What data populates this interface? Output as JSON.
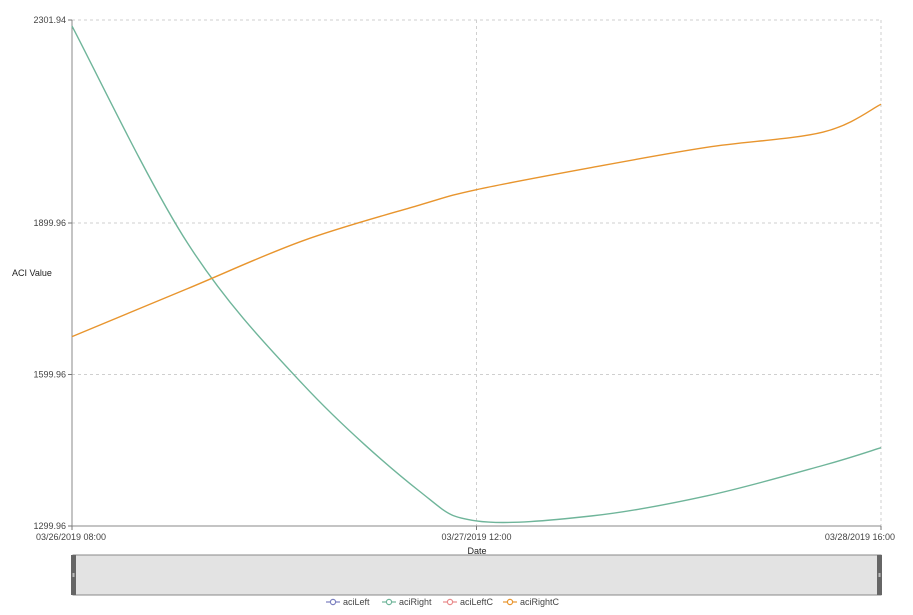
{
  "chart_data": {
    "type": "line",
    "xlabel": "Date",
    "ylabel": "ACI Value",
    "ylim": [
      1299.96,
      2301.94
    ],
    "y_ticks": [
      "2301.94",
      "1899.96",
      "1599.96",
      "1299.96"
    ],
    "x_ticks": [
      "03/26/2019 08:00",
      "03/27/2019 12:00",
      "03/28/2019 16:00"
    ],
    "grid": true,
    "legend_position": "bottom",
    "series": [
      {
        "name": "aciLeft",
        "color": "#7b7fbf",
        "x": [],
        "y": []
      },
      {
        "name": "aciRight",
        "color": "#6fb59a",
        "x": [
          "03/26/2019 08:00",
          "03/26/2019 16:00",
          "03/27/2019 00:00",
          "03/27/2019 08:00",
          "03/27/2019 12:00",
          "03/27/2019 20:00",
          "03/28/2019 04:00",
          "03/28/2019 12:00",
          "03/28/2019 16:00"
        ],
        "y": [
          2290,
          1860,
          1580,
          1370,
          1310,
          1320,
          1360,
          1420,
          1455
        ]
      },
      {
        "name": "aciLeftC",
        "color": "#e88a8a",
        "x": [],
        "y": []
      },
      {
        "name": "aciRightC",
        "color": "#e8952e",
        "x": [
          "03/26/2019 08:00",
          "03/26/2019 16:00",
          "03/27/2019 00:00",
          "03/27/2019 08:00",
          "03/27/2019 12:00",
          "03/27/2019 20:00",
          "03/28/2019 04:00",
          "03/28/2019 12:00",
          "03/28/2019 16:00"
        ],
        "y": [
          1675,
          1770,
          1865,
          1935,
          1966,
          2010,
          2050,
          2080,
          2135
        ]
      }
    ]
  }
}
